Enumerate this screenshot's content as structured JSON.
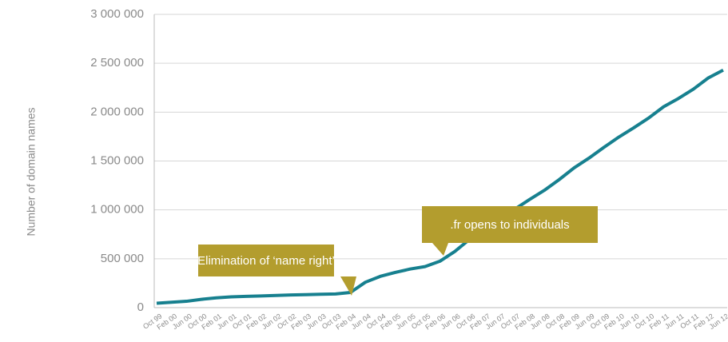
{
  "chart_data": {
    "type": "line",
    "y_label": "Number of domain names",
    "annotations": [
      "Elimination of ‘name right’",
      ".fr opens to individuals"
    ],
    "categories": [
      "Oct 99",
      "Feb 00",
      "Jun 00",
      "Oct 00",
      "Feb 01",
      "Jun 01",
      "Oct 01",
      "Feb 02",
      "Jun 02",
      "Oct 02",
      "Feb 03",
      "Jun 03",
      "Oct 03",
      "Feb 04",
      "Jun 04",
      "Oct 04",
      "Feb 05",
      "Jun 05",
      "Oct 05",
      "Feb 06",
      "Jun 06",
      "Oct 06",
      "Feb 07",
      "Jun 07",
      "Oct 07",
      "Feb 08",
      "Jun 08",
      "Oct 08",
      "Feb 09",
      "Jun 09",
      "Oct 09",
      "Feb 10",
      "Jun 10",
      "Oct 10",
      "Feb 11",
      "Jun 11",
      "Oct 11",
      "Feb 12",
      "Jun 12"
    ],
    "series": [
      {
        "color": "#17808f",
        "values": [
          45000,
          55000,
          65000,
          85000,
          100000,
          110000,
          115000,
          120000,
          125000,
          130000,
          133000,
          137000,
          140000,
          155000,
          260000,
          320000,
          360000,
          395000,
          420000,
          475000,
          575000,
          700000,
          800000,
          910000,
          1005000,
          1105000,
          1200000,
          1310000,
          1430000,
          1530000,
          1640000,
          1745000,
          1840000,
          1940000,
          2055000,
          2140000,
          2235000,
          2350000,
          2430000
        ]
      }
    ],
    "ylim": [
      0,
      3000000
    ],
    "yticks": [
      0,
      {
        "value": 500000,
        "label": "500 000"
      },
      {
        "value": 1000000,
        "label": "1 000 000"
      },
      {
        "value": 1500000,
        "label": "1 500 000"
      },
      {
        "value": 2000000,
        "label": "2 000 000"
      },
      {
        "value": 2500000,
        "label": "2 500 000"
      },
      {
        "value": 3000000,
        "label": "3 000 000"
      }
    ],
    "grid": true
  }
}
